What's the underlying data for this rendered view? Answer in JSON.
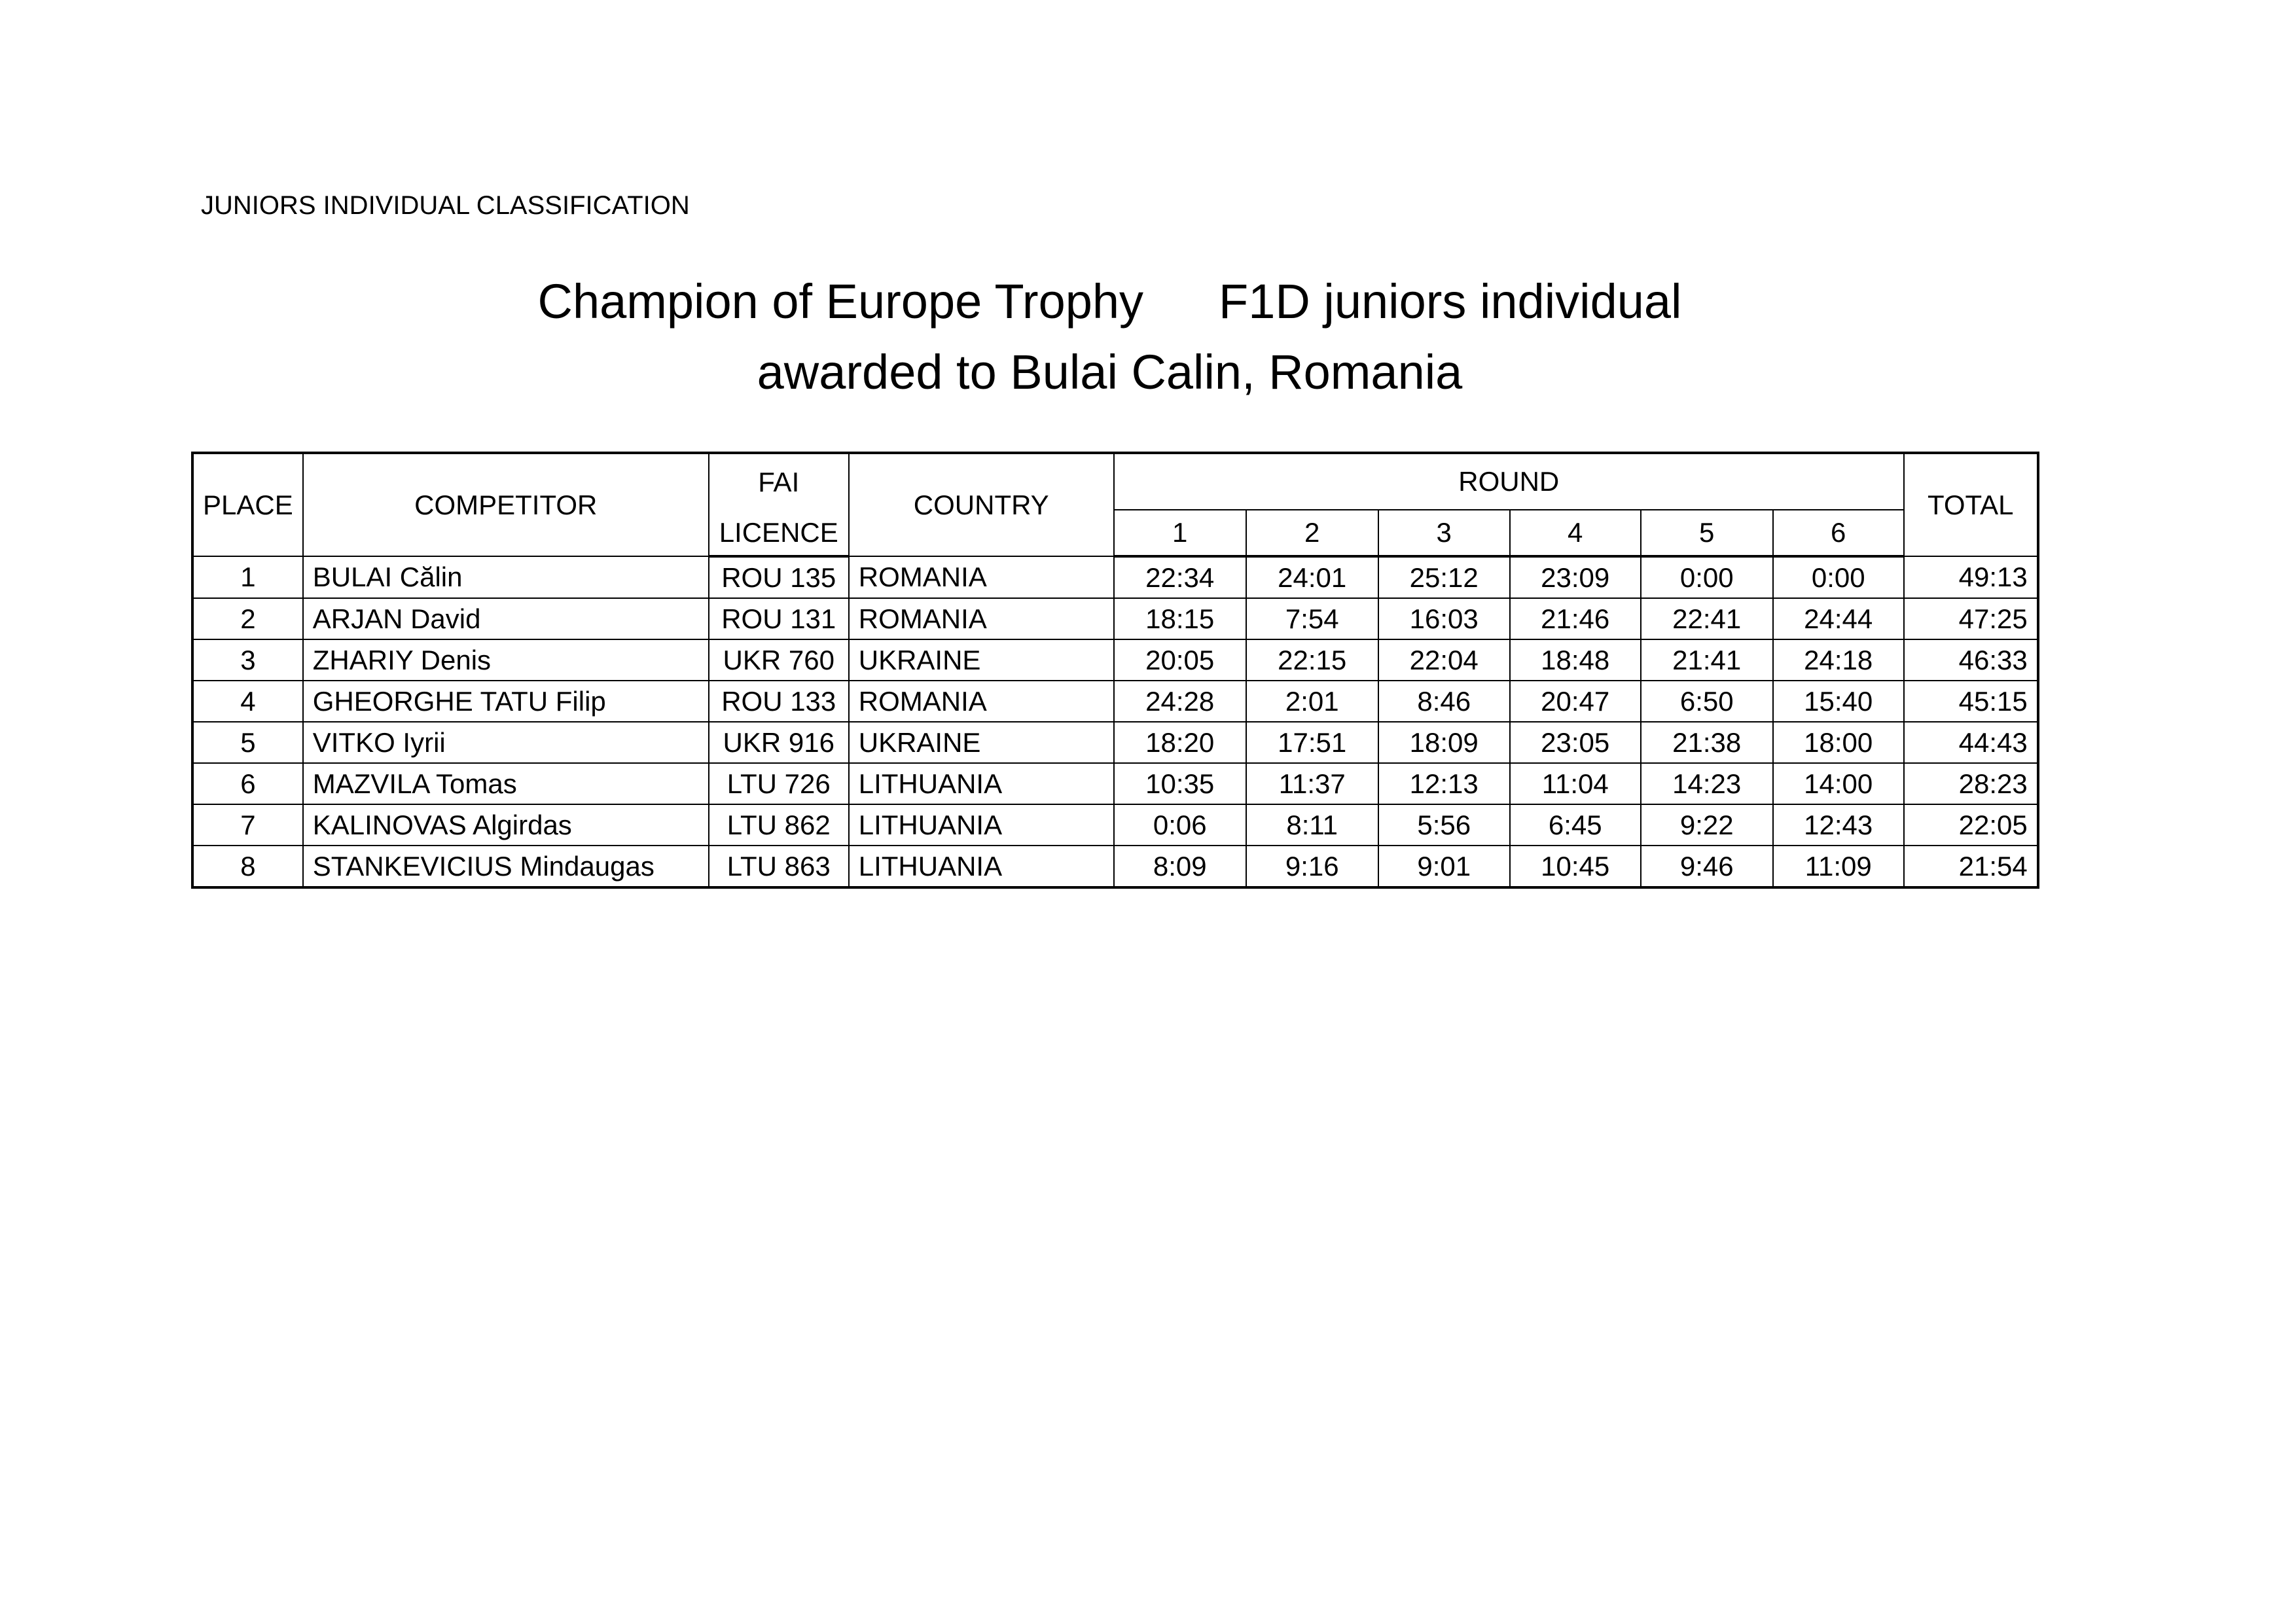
{
  "header": {
    "classification": "JUNIORS INDIVIDUAL CLASSIFICATION",
    "title_left": "Champion of Europe Trophy",
    "title_right": "F1D juniors individual",
    "title_line2": "awarded to Bulai Calin, Romania"
  },
  "table": {
    "columns": {
      "place": "PLACE",
      "competitor": "COMPETITOR",
      "fai": "FAI",
      "licence": "LICENCE",
      "country": "COUNTRY",
      "round": "ROUND",
      "rounds": [
        "1",
        "2",
        "3",
        "4",
        "5",
        "6"
      ],
      "total": "TOTAL"
    },
    "rows": [
      {
        "place": "1",
        "name": "BULAI Călin",
        "licence": "ROU 135",
        "country": "ROMANIA",
        "rounds": [
          "22:34",
          "24:01",
          "25:12",
          "23:09",
          "0:00",
          "0:00"
        ],
        "total": "49:13"
      },
      {
        "place": "2",
        "name": "ARJAN David",
        "licence": "ROU 131",
        "country": "ROMANIA",
        "rounds": [
          "18:15",
          "7:54",
          "16:03",
          "21:46",
          "22:41",
          "24:44"
        ],
        "total": "47:25"
      },
      {
        "place": "3",
        "name": "ZHARIY Denis",
        "licence": "UKR 760",
        "country": "UKRAINE",
        "rounds": [
          "20:05",
          "22:15",
          "22:04",
          "18:48",
          "21:41",
          "24:18"
        ],
        "total": "46:33"
      },
      {
        "place": "4",
        "name": "GHEORGHE TATU Filip",
        "licence": "ROU 133",
        "country": "ROMANIA",
        "rounds": [
          "24:28",
          "2:01",
          "8:46",
          "20:47",
          "6:50",
          "15:40"
        ],
        "total": "45:15"
      },
      {
        "place": "5",
        "name": "VITKO Iyrii",
        "licence": "UKR 916",
        "country": "UKRAINE",
        "rounds": [
          "18:20",
          "17:51",
          "18:09",
          "23:05",
          "21:38",
          "18:00"
        ],
        "total": "44:43"
      },
      {
        "place": "6",
        "name": "MAZVILA Tomas",
        "licence": "LTU 726",
        "country": "LITHUANIA",
        "rounds": [
          "10:35",
          "11:37",
          "12:13",
          "11:04",
          "14:23",
          "14:00"
        ],
        "total": "28:23"
      },
      {
        "place": "7",
        "name": "KALINOVAS Algirdas",
        "licence": "LTU 862",
        "country": "LITHUANIA",
        "rounds": [
          "0:06",
          "8:11",
          "5:56",
          "6:45",
          "9:22",
          "12:43"
        ],
        "total": "22:05"
      },
      {
        "place": "8",
        "name": "STANKEVICIUS Mindaugas",
        "licence": "LTU 863",
        "country": "LITHUANIA",
        "rounds": [
          "8:09",
          "9:16",
          "9:01",
          "10:45",
          "9:46",
          "11:09"
        ],
        "total": "21:54"
      }
    ]
  }
}
